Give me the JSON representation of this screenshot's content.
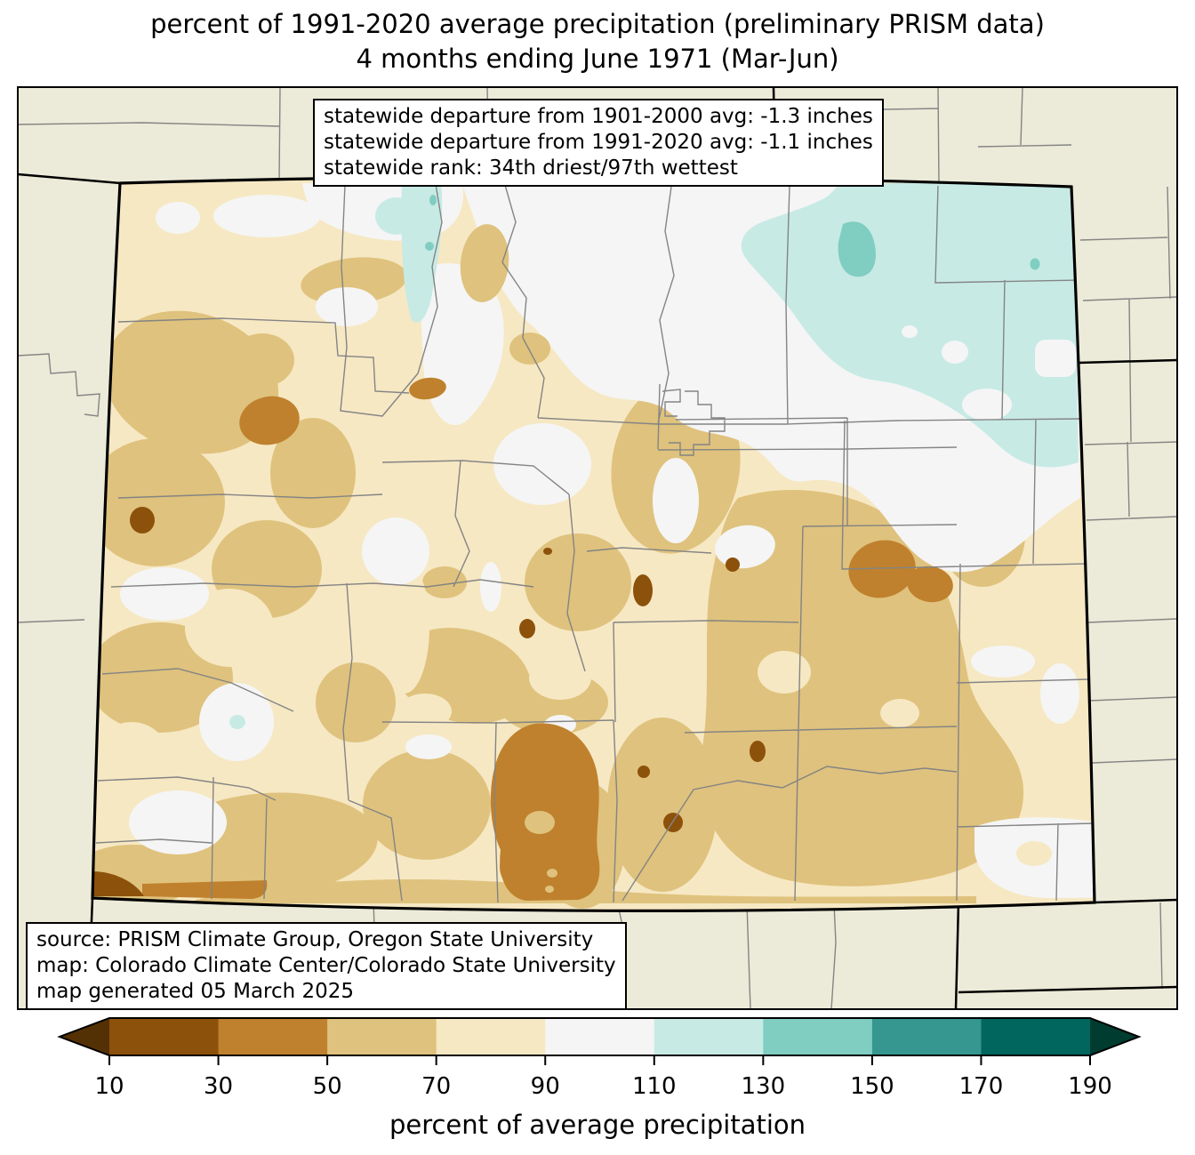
{
  "title": {
    "line1": "percent of 1991-2020 average precipitation (preliminary PRISM data)",
    "line2": "4 months ending June 1971 (Mar-Jun)"
  },
  "stats_box": {
    "lines": [
      "statewide departure from 1901-2000 avg: -1.3 inches",
      "statewide departure from 1991-2020 avg: -1.1 inches",
      "statewide rank: 34th driest/97th wettest"
    ]
  },
  "source_box": {
    "lines": [
      "source: PRISM Climate Group, Oregon State University",
      "map: Colorado Climate Center/Colorado State University",
      "map generated 05 March 2025"
    ]
  },
  "colorbar": {
    "label": "percent of average precipitation",
    "tick_labels": [
      "10",
      "30",
      "50",
      "70",
      "90",
      "110",
      "130",
      "150",
      "170",
      "190"
    ],
    "segment_colors": [
      "#8c510a",
      "#bf812d",
      "#dfc27d",
      "#f6e8c3",
      "#f5f5f5",
      "#c7eae5",
      "#80cdc1",
      "#35978f",
      "#01665e"
    ],
    "arrow_left_color": "#543005",
    "arrow_right_color": "#003c30"
  },
  "map": {
    "region": "Colorado",
    "outside_state_color": "#ECEBD9",
    "county_line_color": "#848484",
    "state_line_color": "#000000",
    "legend_classes": [
      {
        "range": "<10",
        "color": "#543005"
      },
      {
        "range": "10-30",
        "color": "#8c510a"
      },
      {
        "range": "30-50",
        "color": "#bf812d"
      },
      {
        "range": "50-70",
        "color": "#dfc27d"
      },
      {
        "range": "70-90",
        "color": "#f6e8c3"
      },
      {
        "range": "90-110",
        "color": "#f5f5f5"
      },
      {
        "range": "110-130",
        "color": "#c7eae5"
      },
      {
        "range": "130-150",
        "color": "#80cdc1"
      },
      {
        "range": "150-170",
        "color": "#35978f"
      },
      {
        "range": "170-190",
        "color": "#01665e"
      },
      {
        "range": ">190",
        "color": "#003c30"
      }
    ]
  }
}
